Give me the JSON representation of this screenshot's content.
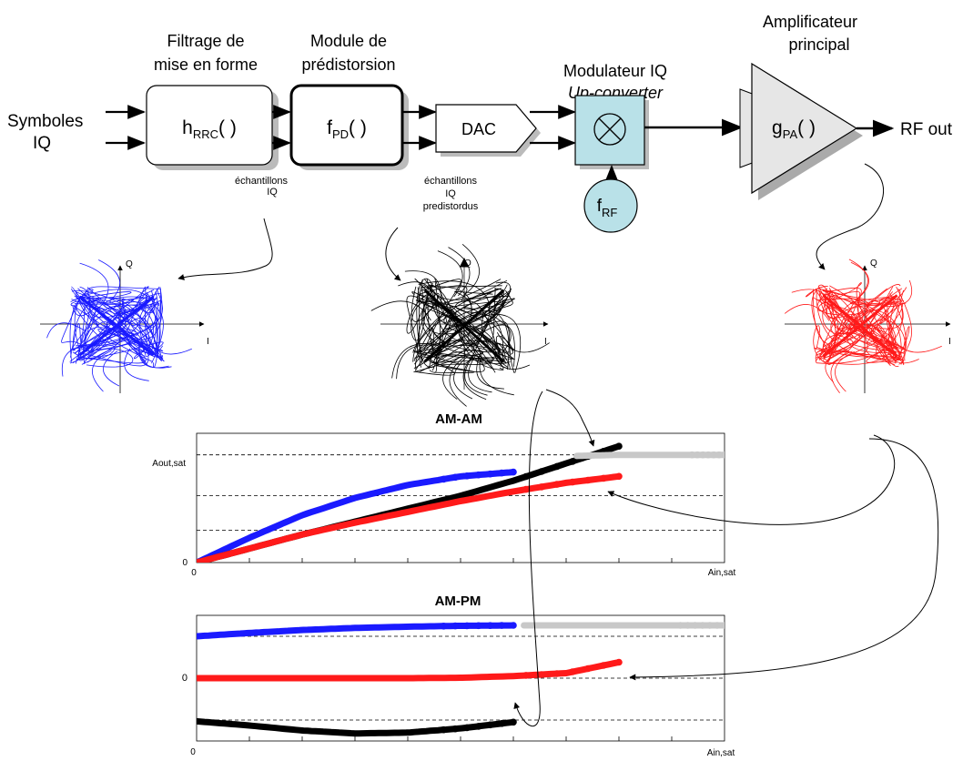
{
  "blocks": {
    "filter": {
      "title_line1": "Filtrage de",
      "title_line2": "mise en forme",
      "fn_main": "h",
      "fn_sub": "RRC",
      "fn_args": "( )"
    },
    "predistortion": {
      "title_line1": "Module de",
      "title_line2": "prédistorsion",
      "fn_main": "f",
      "fn_sub": "PD",
      "fn_args": "( )"
    },
    "dac": {
      "label": "DAC"
    },
    "modulator": {
      "title_line1": "Modulateur IQ",
      "title_line2": "Up-converter",
      "lo_main": "f",
      "lo_sub": "RF"
    },
    "amplifier": {
      "title_line1": "Amplificateur",
      "title_line2": "principal",
      "fn_main": "g",
      "fn_sub": "PA",
      "fn_args": "( )"
    }
  },
  "input": {
    "line1": "Symboles",
    "line2": "IQ"
  },
  "output": {
    "label": "RF out"
  },
  "annotations": {
    "samples_line1": "échantillons",
    "samples_line2": "IQ",
    "pd_samples_line1": "échantillons",
    "pd_samples_line2": "IQ",
    "pd_samples_line3": "predistordus"
  },
  "constellations": {
    "i_axis": "I",
    "q_axis": "Q"
  },
  "colors": {
    "input": "#1a1aff",
    "predistorted": "#000000",
    "output": "#ff1a1a",
    "ideal": "#c8c8c8",
    "modulator_fill": "#b9e1e8"
  },
  "chart_data": [
    {
      "type": "scatter",
      "title": "AM-AM",
      "xlabel": "Ain,sat",
      "x_origin_label": "0",
      "y_origin_label": "0",
      "y_top_label": "Aout,sat",
      "xlim": [
        0,
        1
      ],
      "ylim": [
        0,
        1.2
      ],
      "grid": true,
      "series": [
        {
          "color": "#1a1aff",
          "x": [
            0,
            0.1,
            0.2,
            0.3,
            0.4,
            0.5,
            0.6
          ],
          "y": [
            0,
            0.23,
            0.44,
            0.6,
            0.72,
            0.8,
            0.84
          ]
        },
        {
          "color": "#000000",
          "x": [
            0,
            0.1,
            0.2,
            0.3,
            0.4,
            0.5,
            0.6,
            0.7,
            0.8
          ],
          "y": [
            0,
            0.13,
            0.26,
            0.38,
            0.5,
            0.62,
            0.76,
            0.92,
            1.08
          ]
        },
        {
          "color": "#ff1a1a",
          "x": [
            0,
            0.1,
            0.2,
            0.3,
            0.4,
            0.5,
            0.6,
            0.7,
            0.8
          ],
          "y": [
            0,
            0.13,
            0.26,
            0.37,
            0.47,
            0.57,
            0.66,
            0.74,
            0.8
          ]
        },
        {
          "color": "#c8c8c8",
          "x": [
            0.72,
            0.8,
            0.9,
            1.0
          ],
          "y": [
            0.99,
            1.0,
            1.0,
            1.0
          ]
        }
      ]
    },
    {
      "type": "scatter",
      "title": "AM-PM",
      "xlabel": "Ain,sat",
      "x_origin_label": "0",
      "y_origin_label": "0",
      "xlim": [
        0,
        1
      ],
      "ylim": [
        -1.5,
        1.5
      ],
      "grid": true,
      "series": [
        {
          "color": "#1a1aff",
          "x": [
            0,
            0.1,
            0.2,
            0.3,
            0.4,
            0.5,
            0.6
          ],
          "y": [
            1.0,
            1.08,
            1.15,
            1.2,
            1.23,
            1.25,
            1.26
          ]
        },
        {
          "color": "#c8c8c8",
          "x": [
            0.62,
            0.7,
            0.8,
            0.9,
            1.0
          ],
          "y": [
            1.26,
            1.26,
            1.26,
            1.26,
            1.26
          ]
        },
        {
          "color": "#ff1a1a",
          "x": [
            0,
            0.1,
            0.2,
            0.3,
            0.4,
            0.5,
            0.6,
            0.7,
            0.8
          ],
          "y": [
            0,
            0,
            0,
            0,
            0,
            0.01,
            0.05,
            0.12,
            0.38
          ]
        },
        {
          "color": "#000000",
          "x": [
            0,
            0.1,
            0.2,
            0.3,
            0.4,
            0.5,
            0.6
          ],
          "y": [
            -1.03,
            -1.13,
            -1.25,
            -1.32,
            -1.3,
            -1.2,
            -1.05
          ]
        }
      ]
    }
  ]
}
